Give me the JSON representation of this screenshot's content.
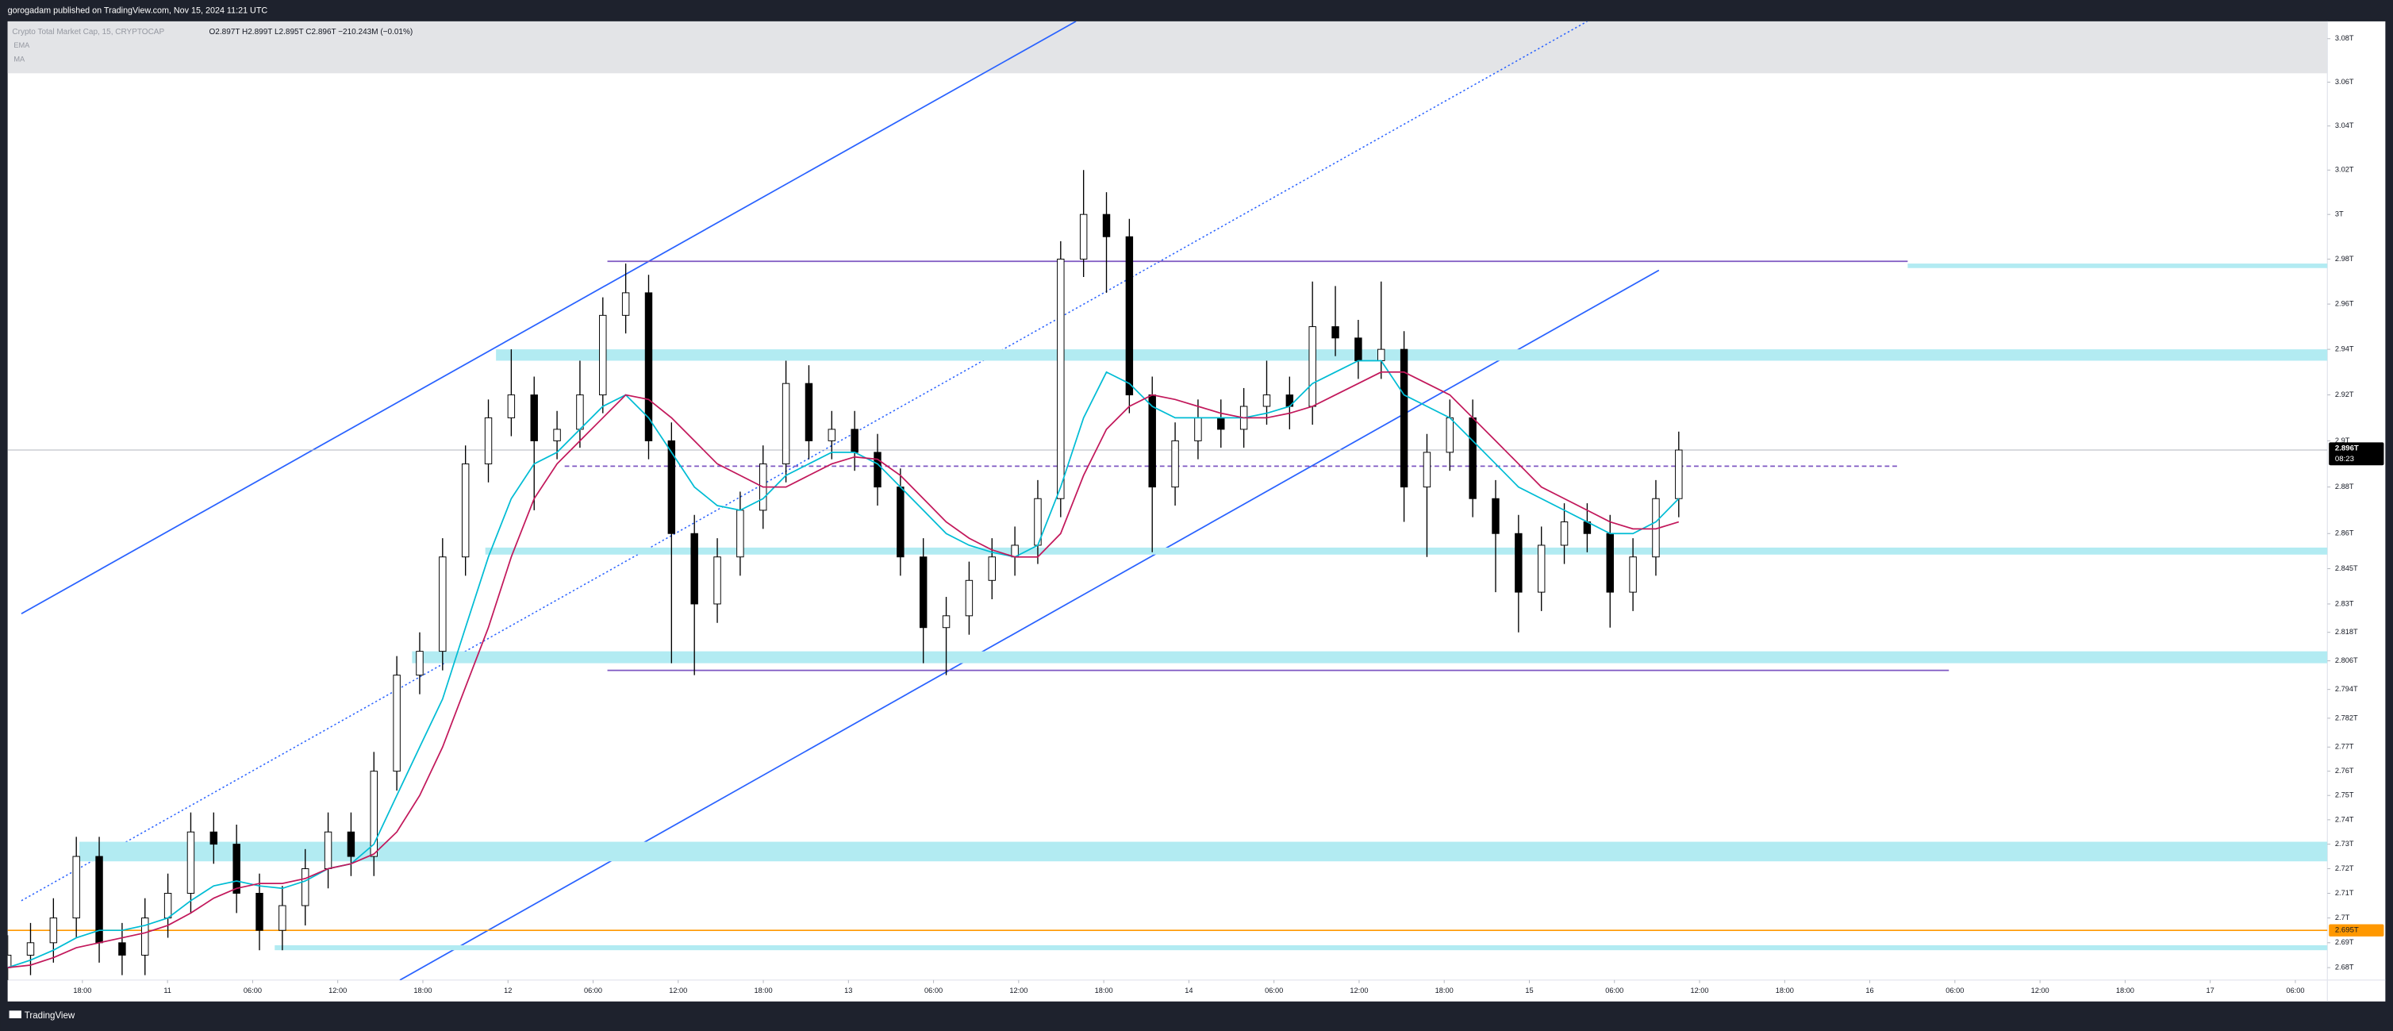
{
  "header": {
    "publisher": "gorogadam published on TradingView.com, Nov 15, 2024 11:21 UTC",
    "footer": "TradingView"
  },
  "chart_data": {
    "type": "candlestick",
    "title": "Crypto Total Market Cap, 15, CRYPTOCAP",
    "legend_values": "O2.897T H2.899T L2.895T C2.896T −210.243M (−0.01%)",
    "log_scale": true,
    "grid": false,
    "up_color": "#ffffff",
    "down_color": "#000000",
    "ylim": [
      2.675,
      3.088
    ],
    "yticks": [
      {
        "value": 3.08,
        "label": "3.08T"
      },
      {
        "value": 3.06,
        "label": "3.06T"
      },
      {
        "value": 3.04,
        "label": "3.04T"
      },
      {
        "value": 3.02,
        "label": "3.02T"
      },
      {
        "value": 3,
        "label": "3T"
      },
      {
        "value": 2.98,
        "label": "2.98T"
      },
      {
        "value": 2.96,
        "label": "2.96T"
      },
      {
        "value": 2.94,
        "label": "2.94T"
      },
      {
        "value": 2.92,
        "label": "2.92T"
      },
      {
        "value": 2.9,
        "label": "2.9T"
      },
      {
        "value": 2.88,
        "label": "2.88T"
      },
      {
        "value": 2.86,
        "label": "2.86T"
      },
      {
        "value": 2.845,
        "label": "2.845T"
      },
      {
        "value": 2.83,
        "label": "2.83T"
      },
      {
        "value": 2.818,
        "label": "2.818T"
      },
      {
        "value": 2.806,
        "label": "2.806T"
      },
      {
        "value": 2.794,
        "label": "2.794T"
      },
      {
        "value": 2.782,
        "label": "2.782T"
      },
      {
        "value": 2.77,
        "label": "2.77T"
      },
      {
        "value": 2.76,
        "label": "2.76T"
      },
      {
        "value": 2.75,
        "label": "2.75T"
      },
      {
        "value": 2.74,
        "label": "2.74T"
      },
      {
        "value": 2.73,
        "label": "2.73T"
      },
      {
        "value": 2.72,
        "label": "2.72T"
      },
      {
        "value": 2.71,
        "label": "2.71T"
      },
      {
        "value": 2.7,
        "label": "2.7T"
      },
      {
        "value": 2.69,
        "label": "2.69T"
      },
      {
        "value": 2.68,
        "label": "2.68T"
      }
    ],
    "xticks": [
      "18:00",
      "11",
      "06:00",
      "12:00",
      "18:00",
      "12",
      "06:00",
      "12:00",
      "18:00",
      "13",
      "06:00",
      "12:00",
      "18:00",
      "14",
      "06:00",
      "12:00",
      "18:00",
      "15",
      "06:00",
      "12:00",
      "18:00",
      "16",
      "06:00",
      "12:00",
      "18:00",
      "17",
      "06:00"
    ],
    "ohlc": {
      "open": [
        2.68,
        2.685,
        2.69,
        2.7,
        2.725,
        2.69,
        2.685,
        2.7,
        2.71,
        2.735,
        2.73,
        2.71,
        2.695,
        2.705,
        2.72,
        2.735,
        2.725,
        2.76,
        2.8,
        2.81,
        2.85,
        2.89,
        2.91,
        2.92,
        2.9,
        2.905,
        2.92,
        2.955,
        2.965,
        2.9,
        2.86,
        2.83,
        2.85,
        2.87,
        2.89,
        2.925,
        2.9,
        2.905,
        2.895,
        2.88,
        2.85,
        2.82,
        2.825,
        2.84,
        2.85,
        2.855,
        2.875,
        2.98,
        3.0,
        2.99,
        2.92,
        2.88,
        2.9,
        2.91,
        2.905,
        2.915,
        2.92,
        2.915,
        2.95,
        2.945,
        2.935,
        2.94,
        2.88,
        2.895,
        2.91,
        2.875,
        2.86,
        2.835,
        2.855,
        2.865,
        2.86,
        2.835,
        2.85,
        2.875
      ],
      "high": [
        2.693,
        2.698,
        2.708,
        2.733,
        2.733,
        2.698,
        2.708,
        2.718,
        2.743,
        2.743,
        2.738,
        2.718,
        2.713,
        2.728,
        2.743,
        2.743,
        2.768,
        2.808,
        2.818,
        2.858,
        2.898,
        2.918,
        2.94,
        2.928,
        2.913,
        2.935,
        2.963,
        2.978,
        2.973,
        2.908,
        2.868,
        2.858,
        2.878,
        2.898,
        2.935,
        2.933,
        2.913,
        2.913,
        2.903,
        2.888,
        2.858,
        2.833,
        2.848,
        2.858,
        2.863,
        2.883,
        2.988,
        3.02,
        3.01,
        2.998,
        2.928,
        2.908,
        2.918,
        2.918,
        2.923,
        2.935,
        2.928,
        2.97,
        2.968,
        2.953,
        2.97,
        2.948,
        2.903,
        2.918,
        2.918,
        2.883,
        2.868,
        2.863,
        2.873,
        2.873,
        2.868,
        2.858,
        2.883,
        2.904
      ],
      "low": [
        2.672,
        2.677,
        2.682,
        2.692,
        2.682,
        2.677,
        2.677,
        2.692,
        2.702,
        2.722,
        2.702,
        2.687,
        2.687,
        2.697,
        2.712,
        2.717,
        2.717,
        2.752,
        2.792,
        2.802,
        2.842,
        2.882,
        2.902,
        2.87,
        2.892,
        2.897,
        2.912,
        2.947,
        2.892,
        2.805,
        2.8,
        2.822,
        2.842,
        2.862,
        2.882,
        2.892,
        2.892,
        2.887,
        2.872,
        2.842,
        2.805,
        2.8,
        2.817,
        2.832,
        2.842,
        2.847,
        2.867,
        2.972,
        2.965,
        2.912,
        2.852,
        2.872,
        2.892,
        2.897,
        2.897,
        2.907,
        2.905,
        2.907,
        2.937,
        2.927,
        2.927,
        2.865,
        2.85,
        2.887,
        2.867,
        2.835,
        2.818,
        2.827,
        2.847,
        2.852,
        2.82,
        2.827,
        2.842,
        2.867
      ],
      "close": [
        2.685,
        2.69,
        2.7,
        2.725,
        2.69,
        2.685,
        2.7,
        2.71,
        2.735,
        2.73,
        2.71,
        2.695,
        2.705,
        2.72,
        2.735,
        2.725,
        2.76,
        2.8,
        2.81,
        2.85,
        2.89,
        2.91,
        2.92,
        2.9,
        2.905,
        2.92,
        2.955,
        2.965,
        2.9,
        2.86,
        2.83,
        2.85,
        2.87,
        2.89,
        2.925,
        2.9,
        2.905,
        2.895,
        2.88,
        2.85,
        2.82,
        2.825,
        2.84,
        2.85,
        2.855,
        2.875,
        2.98,
        3.0,
        2.99,
        2.92,
        2.88,
        2.9,
        2.91,
        2.905,
        2.915,
        2.92,
        2.915,
        2.95,
        2.945,
        2.935,
        2.94,
        2.88,
        2.895,
        2.91,
        2.875,
        2.86,
        2.835,
        2.855,
        2.865,
        2.86,
        2.835,
        2.85,
        2.875,
        2.896
      ]
    },
    "series": [
      {
        "name": "EMA",
        "color": "#00bcd4",
        "values": [
          2.68,
          2.683,
          2.687,
          2.692,
          2.695,
          2.695,
          2.697,
          2.7,
          2.707,
          2.713,
          2.715,
          2.713,
          2.712,
          2.715,
          2.72,
          2.722,
          2.73,
          2.75,
          2.77,
          2.79,
          2.82,
          2.85,
          2.875,
          2.89,
          2.895,
          2.905,
          2.915,
          2.92,
          2.91,
          2.895,
          2.88,
          2.872,
          2.87,
          2.875,
          2.885,
          2.89,
          2.895,
          2.895,
          2.89,
          2.88,
          2.87,
          2.86,
          2.855,
          2.852,
          2.85,
          2.855,
          2.88,
          2.91,
          2.93,
          2.925,
          2.915,
          2.91,
          2.91,
          2.91,
          2.91,
          2.912,
          2.915,
          2.925,
          2.93,
          2.935,
          2.935,
          2.92,
          2.915,
          2.91,
          2.9,
          2.89,
          2.88,
          2.875,
          2.87,
          2.865,
          2.86,
          2.86,
          2.865,
          2.875
        ]
      },
      {
        "name": "MA",
        "color": "#c2185b",
        "values": [
          2.68,
          2.681,
          2.684,
          2.688,
          2.69,
          2.692,
          2.694,
          2.697,
          2.702,
          2.708,
          2.712,
          2.714,
          2.714,
          2.716,
          2.72,
          2.722,
          2.726,
          2.735,
          2.75,
          2.77,
          2.795,
          2.82,
          2.85,
          2.875,
          2.89,
          2.9,
          2.91,
          2.92,
          2.918,
          2.91,
          2.9,
          2.89,
          2.885,
          2.88,
          2.88,
          2.885,
          2.89,
          2.893,
          2.892,
          2.885,
          2.875,
          2.865,
          2.858,
          2.853,
          2.85,
          2.85,
          2.86,
          2.885,
          2.905,
          2.915,
          2.92,
          2.918,
          2.915,
          2.912,
          2.91,
          2.91,
          2.912,
          2.915,
          2.92,
          2.925,
          2.93,
          2.93,
          2.925,
          2.92,
          2.91,
          2.9,
          2.89,
          2.88,
          2.875,
          2.87,
          2.865,
          2.862,
          2.862,
          2.865
        ]
      }
    ],
    "zone_color": "#b2ebf2",
    "zones": [
      {
        "low": 2.976,
        "high": 2.978
      },
      {
        "low": 2.935,
        "high": 2.94
      },
      {
        "low": 2.851,
        "high": 2.854
      },
      {
        "low": 2.805,
        "high": 2.81
      },
      {
        "low": 2.723,
        "high": 2.731
      },
      {
        "low": 2.687,
        "high": 2.689
      }
    ],
    "levels": [
      {
        "value": 2.979,
        "color": "#7e57c2",
        "dashed": false
      },
      {
        "value": 2.889,
        "color": "#7e57c2",
        "dashed": true
      },
      {
        "value": 2.802,
        "color": "#7e57c2",
        "dashed": false
      }
    ],
    "current_price": {
      "value": 2.896,
      "label": "2.896T",
      "countdown": "08:23"
    },
    "alert_line": {
      "value": 2.695,
      "label": "2.695T",
      "color": "#ff9800"
    }
  }
}
